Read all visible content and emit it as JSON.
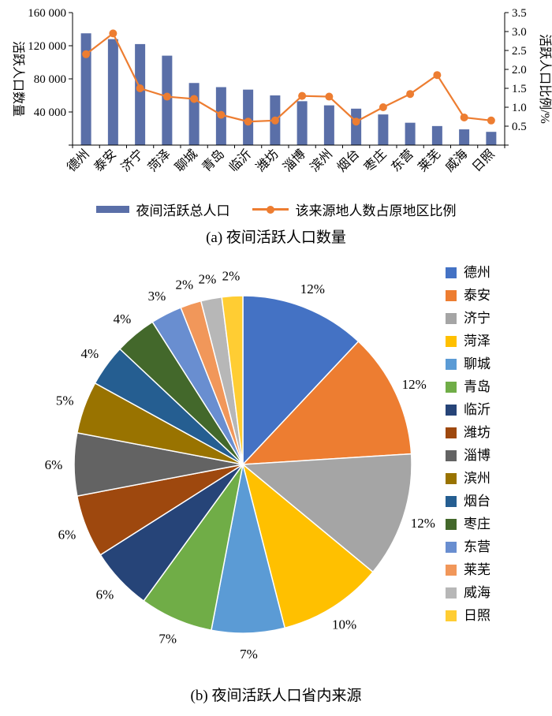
{
  "colors": {
    "bar": "#5A6FA8",
    "line": "#ED7D31",
    "axis": "#000000"
  },
  "chart_data": [
    {
      "type": "bar",
      "title": "(a) 夜间活跃人口数量",
      "categories": [
        "德州",
        "泰安",
        "济宁",
        "菏泽",
        "聊城",
        "青岛",
        "临沂",
        "潍坊",
        "淄博",
        "滨州",
        "烟台",
        "枣庄",
        "东营",
        "莱芜",
        "威海",
        "日照"
      ],
      "series": [
        {
          "name": "夜间活跃总人口",
          "type": "bar",
          "axis": "left",
          "values": [
            135000,
            128000,
            122000,
            108000,
            75000,
            70000,
            67000,
            60000,
            53000,
            48000,
            44000,
            37000,
            27000,
            23000,
            19000,
            16000
          ]
        },
        {
          "name": "该来源地人数占原地区比例",
          "type": "line",
          "axis": "right",
          "values": [
            2.4,
            2.95,
            1.5,
            1.28,
            1.22,
            0.8,
            0.62,
            0.65,
            1.3,
            1.28,
            0.62,
            1.0,
            1.35,
            1.85,
            0.73,
            0.65
          ]
        }
      ],
      "ylabel_left": "活跃人口数量",
      "ylabel_right": "活跃人口比例/%",
      "ylim_left": [
        0,
        160000
      ],
      "ylim_right": [
        0,
        3.5
      ],
      "yticks_left": [
        "160 000",
        "120 000",
        "80 000",
        "40 000"
      ],
      "yticks_right": [
        "3.5",
        "3.0",
        "2.5",
        "2.0",
        "1.5",
        "1.0",
        "0.5"
      ],
      "grid": false,
      "legend_position": "bottom"
    },
    {
      "type": "pie",
      "title": "(b) 夜间活跃人口省内来源",
      "labels": [
        "德州",
        "泰安",
        "济宁",
        "菏泽",
        "聊城",
        "青岛",
        "临沂",
        "潍坊",
        "淄博",
        "滨州",
        "烟台",
        "枣庄",
        "东营",
        "莱芜",
        "威海",
        "日照"
      ],
      "values": [
        12,
        12,
        12,
        10,
        7,
        7,
        6,
        6,
        6,
        5,
        4,
        4,
        3,
        2,
        2,
        2
      ],
      "unit": "%",
      "colors": [
        "#4472C4",
        "#ED7D31",
        "#A5A5A5",
        "#FFC000",
        "#5B9BD5",
        "#70AD47",
        "#264478",
        "#9E480E",
        "#636363",
        "#997300",
        "#255E91",
        "#43682B",
        "#698ED0",
        "#F1975A",
        "#B7B7B7",
        "#FFCD33"
      ],
      "legend_position": "right"
    }
  ]
}
